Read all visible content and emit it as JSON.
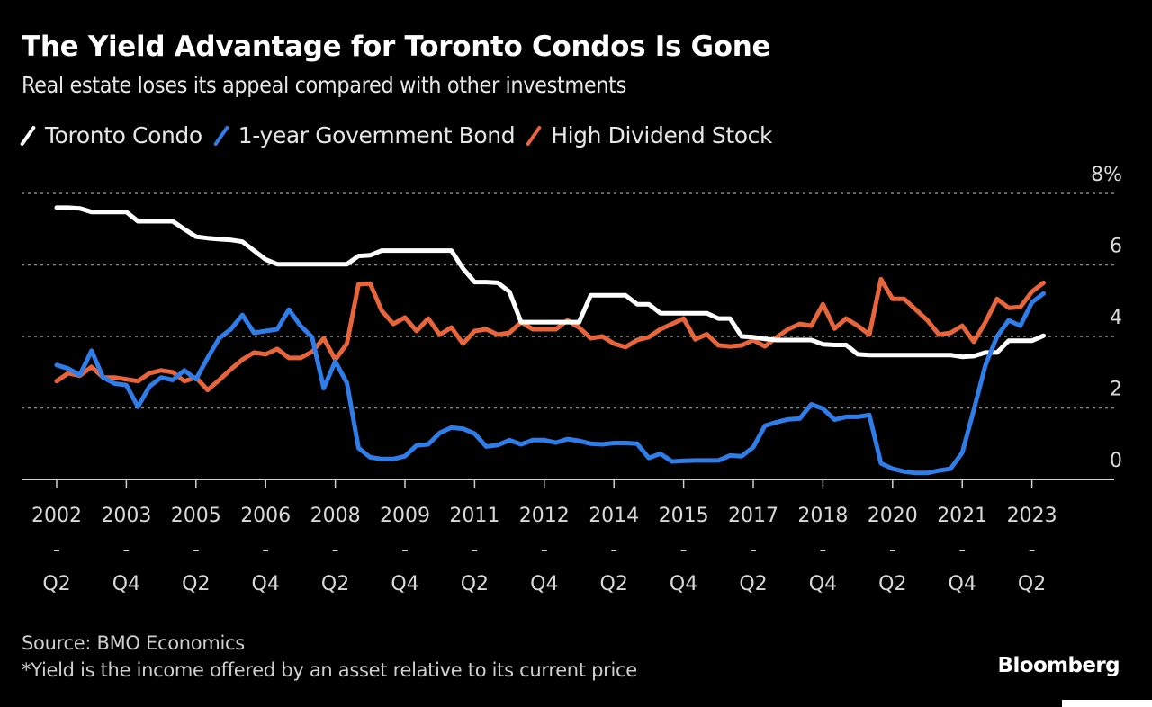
{
  "header": {
    "title": "The Yield Advantage for Toronto Condos Is Gone",
    "subtitle": "Real estate loses its appeal compared with other investments"
  },
  "legend": [
    {
      "label": "Toronto Condo",
      "color": "#ffffff"
    },
    {
      "label": "1-year Government Bond",
      "color": "#2f7de8"
    },
    {
      "label": "High Dividend Stock",
      "color": "#e8643a"
    }
  ],
  "footer": {
    "source": "Source: BMO Economics",
    "note": "*Yield is the income offered by an asset relative to its current price",
    "brand": "Bloomberg"
  },
  "chart_data": {
    "type": "line",
    "title": "The Yield Advantage for Toronto Condos Is Gone",
    "subtitle": "Real estate loses its appeal compared with other investments",
    "xlabel": "",
    "ylabel": "",
    "x_start": "2002 Q2",
    "x_frequency": "quarterly",
    "x_count": 86,
    "x_ticks": [
      {
        "index": 0,
        "label": [
          "2002",
          "-",
          "Q2"
        ]
      },
      {
        "index": 6,
        "label": [
          "2003",
          "-",
          "Q4"
        ]
      },
      {
        "index": 12,
        "label": [
          "2005",
          "-",
          "Q2"
        ]
      },
      {
        "index": 18,
        "label": [
          "2006",
          "-",
          "Q4"
        ]
      },
      {
        "index": 24,
        "label": [
          "2008",
          "-",
          "Q2"
        ]
      },
      {
        "index": 30,
        "label": [
          "2009",
          "-",
          "Q4"
        ]
      },
      {
        "index": 36,
        "label": [
          "2011",
          "-",
          "Q2"
        ]
      },
      {
        "index": 42,
        "label": [
          "2012",
          "-",
          "Q4"
        ]
      },
      {
        "index": 48,
        "label": [
          "2014",
          "-",
          "Q2"
        ]
      },
      {
        "index": 54,
        "label": [
          "2015",
          "-",
          "Q4"
        ]
      },
      {
        "index": 60,
        "label": [
          "2017",
          "-",
          "Q2"
        ]
      },
      {
        "index": 66,
        "label": [
          "2018",
          "-",
          "Q4"
        ]
      },
      {
        "index": 72,
        "label": [
          "2020",
          "-",
          "Q2"
        ]
      },
      {
        "index": 78,
        "label": [
          "2021",
          "-",
          "Q4"
        ]
      },
      {
        "index": 84,
        "label": [
          "2023",
          "-",
          "Q2"
        ]
      }
    ],
    "y_ticks": [
      {
        "value": 8,
        "label": "8%"
      },
      {
        "value": 6,
        "label": "6"
      },
      {
        "value": 4,
        "label": "4"
      },
      {
        "value": 2,
        "label": "2"
      },
      {
        "value": 0,
        "label": "0"
      }
    ],
    "ylim": [
      0,
      8
    ],
    "y_axis_position": "right",
    "grid": true,
    "legend_position": "top-left",
    "series": [
      {
        "name": "Toronto Condo",
        "color": "#ffffff",
        "values": [
          7.6,
          7.6,
          7.58,
          7.48,
          7.48,
          7.48,
          7.48,
          7.22,
          7.22,
          7.22,
          7.22,
          7.0,
          6.79,
          6.75,
          6.72,
          6.7,
          6.65,
          6.4,
          6.15,
          6.02,
          6.02,
          6.02,
          6.02,
          6.02,
          6.02,
          6.02,
          6.25,
          6.27,
          6.4,
          6.4,
          6.4,
          6.4,
          6.4,
          6.4,
          6.4,
          5.9,
          5.52,
          5.52,
          5.5,
          5.25,
          4.4,
          4.4,
          4.4,
          4.4,
          4.4,
          4.4,
          5.15,
          5.15,
          5.15,
          5.15,
          4.9,
          4.9,
          4.65,
          4.65,
          4.65,
          4.65,
          4.65,
          4.5,
          4.5,
          4.0,
          3.98,
          3.93,
          3.9,
          3.9,
          3.9,
          3.9,
          3.78,
          3.76,
          3.76,
          3.5,
          3.48,
          3.48,
          3.48,
          3.48,
          3.48,
          3.48,
          3.48,
          3.48,
          3.43,
          3.45,
          3.55,
          3.55,
          3.88,
          3.88,
          3.88,
          4.02
        ]
      },
      {
        "name": "1-year Government Bond",
        "color": "#2f7de8",
        "values": [
          3.2,
          3.1,
          2.92,
          3.6,
          2.85,
          2.68,
          2.64,
          2.03,
          2.6,
          2.85,
          2.78,
          3.05,
          2.8,
          3.4,
          3.95,
          4.2,
          4.6,
          4.1,
          4.15,
          4.2,
          4.75,
          4.3,
          3.98,
          2.55,
          3.3,
          2.7,
          0.88,
          0.62,
          0.57,
          0.57,
          0.65,
          0.95,
          0.98,
          1.3,
          1.45,
          1.42,
          1.28,
          0.92,
          0.96,
          1.1,
          0.98,
          1.1,
          1.1,
          1.03,
          1.13,
          1.08,
          1.0,
          0.98,
          1.02,
          1.02,
          1.0,
          0.6,
          0.72,
          0.5,
          0.52,
          0.53,
          0.53,
          0.53,
          0.67,
          0.65,
          0.9,
          1.5,
          1.6,
          1.68,
          1.7,
          2.1,
          1.98,
          1.67,
          1.75,
          1.75,
          1.8,
          0.45,
          0.3,
          0.22,
          0.18,
          0.18,
          0.25,
          0.3,
          0.75,
          1.95,
          3.2,
          4.0,
          4.45,
          4.3,
          4.95,
          5.2
        ]
      },
      {
        "name": "High Dividend Stock",
        "color": "#e8643a",
        "values": [
          2.75,
          2.97,
          2.9,
          3.15,
          2.85,
          2.85,
          2.8,
          2.75,
          2.97,
          3.05,
          3.0,
          2.75,
          2.85,
          2.5,
          2.78,
          3.08,
          3.35,
          3.55,
          3.5,
          3.65,
          3.4,
          3.4,
          3.57,
          3.95,
          3.35,
          3.8,
          5.46,
          5.48,
          4.72,
          4.35,
          4.53,
          4.15,
          4.5,
          4.05,
          4.25,
          3.8,
          4.15,
          4.2,
          4.05,
          4.1,
          4.4,
          4.2,
          4.2,
          4.2,
          4.45,
          4.25,
          3.95,
          4.0,
          3.8,
          3.7,
          3.9,
          3.98,
          4.2,
          4.35,
          4.5,
          3.92,
          4.06,
          3.75,
          3.72,
          3.75,
          3.9,
          3.72,
          3.97,
          4.2,
          4.35,
          4.3,
          4.9,
          4.22,
          4.5,
          4.3,
          4.05,
          5.6,
          5.05,
          5.05,
          4.75,
          4.45,
          4.05,
          4.1,
          4.3,
          3.85,
          4.4,
          5.05,
          4.8,
          4.82,
          5.25,
          5.5
        ]
      }
    ]
  }
}
